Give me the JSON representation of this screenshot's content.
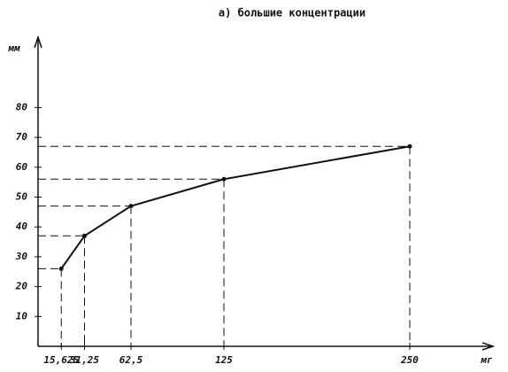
{
  "chart_data": {
    "type": "line",
    "title": "а) большие концентрации",
    "x_label": "мг",
    "y_label": "мм",
    "x": [
      15.625,
      31.25,
      62.5,
      125,
      250
    ],
    "series": [
      {
        "name": null,
        "color": "#111111",
        "values": [
          26,
          37,
          47,
          56,
          67
        ]
      }
    ],
    "xlim": [
      0,
      300
    ],
    "xticks": [
      {
        "value": 15.625,
        "label": "15,625"
      },
      {
        "value": 31.25,
        "label": "31,25"
      },
      {
        "value": 62.5,
        "label": "62,5"
      },
      125,
      250
    ],
    "ylim": [
      0,
      100
    ],
    "yticks": [
      10,
      20,
      30,
      40,
      50,
      60,
      70,
      80
    ],
    "guide_lines": true,
    "grid": false
  }
}
